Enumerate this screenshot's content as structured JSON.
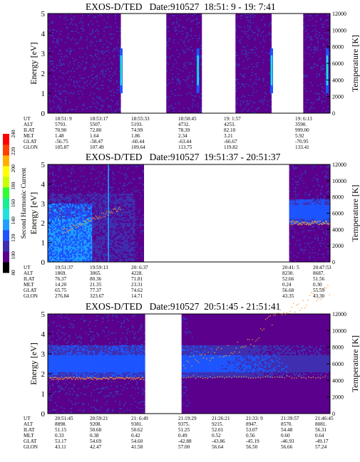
{
  "panels": [
    {
      "title": "EXOS-D/TED   Date:910527  18:51: 9 - 19: 7:41",
      "ephemeris": {
        "UT": [
          "18:51: 9",
          "18:53:17",
          "18:55:33",
          "18:58:45",
          "19: 1:57",
          "19: 6:13"
        ],
        "ALT": [
          "5793.",
          "5507.",
          "5193.",
          "4732.",
          "4253.",
          "3590."
        ],
        "ILAT": [
          "70.90",
          "72.80",
          "74.99",
          "78.39",
          "82.10",
          "999.00"
        ],
        "MLT": [
          "1.48",
          "1.64",
          "1.86",
          "2.34",
          "3.21",
          "5.92"
        ],
        "GLAT": [
          "-56.75",
          "-58.47",
          "-60.44",
          "-63.44",
          "-66.67",
          "-70.95"
        ],
        "GLON": [
          "105.87",
          "107.49",
          "109.64",
          "113.75",
          "119.82",
          "133.41"
        ]
      }
    },
    {
      "title": "EXOS-D/TED   Date:910527  19:51:37 - 20:51:37",
      "ephemeris": {
        "UT": [
          "19:51:37",
          "19:59:13",
          "20: 6:37",
          "20:41: 5",
          "20:47:53"
        ],
        "ALT": [
          "1869.",
          "3065.",
          "4228.",
          "8230.",
          "8687."
        ],
        "ILAT": [
          "76.37",
          "80.36",
          "71.81",
          "52.66",
          "51.56"
        ],
        "MLT": [
          "14.20",
          "21.35",
          "23.31",
          "0.24",
          "0.30"
        ],
        "GLAT": [
          "65.75",
          "77.37",
          "74.62",
          "56.68",
          "55.59"
        ],
        "GLON": [
          "276.84",
          "323.67",
          "14.71",
          "43.35",
          "43.30"
        ]
      }
    },
    {
      "title": "EXOS-D/TED   Date:910527  20:51:45 - 21:51:41",
      "ephemeris": {
        "UT": [
          "20:51:45",
          "20:59:21",
          "21: 6:49",
          "21:19:29",
          "21:26:21",
          "21:33: 9",
          "21:39:57",
          "21:46:45"
        ],
        "ALT": [
          "8898.",
          "9208.",
          "9381.",
          "9375.",
          "9215.",
          "8947.",
          "8570.",
          "8081."
        ],
        "ILAT": [
          "51.15",
          "50.68",
          "50.62",
          "51.25",
          "52.01",
          "53.07",
          "54.48",
          "56.31"
        ],
        "MLT": [
          "0.33",
          "0.38",
          "0.42",
          "0.49",
          "0.52",
          "0.56",
          "0.60",
          "0.64"
        ],
        "GLAT": [
          "53.17",
          "54.69",
          "54.60",
          "-42.88",
          "-43.86",
          "-45.19",
          "-46.93",
          "-49.17"
        ],
        "GLON": [
          "43.11",
          "42.47",
          "41.58",
          "57.00",
          "56.64",
          "56.50",
          "56.66",
          "57.24"
        ]
      }
    }
  ],
  "ephemeris_row_labels": [
    "UT",
    "ALT",
    "ILAT",
    "MLT",
    "GLAT",
    "GLON"
  ],
  "chart_data": [
    {
      "type": "heatmap",
      "title": "EXOS-D/TED   Date:910527  18:51: 9 - 19: 7:41",
      "xlabel": "",
      "ylabel": "Energy [eV]",
      "y2label": "Temperature [K]",
      "ylim": [
        0,
        5
      ],
      "yticks": [
        0,
        1,
        2,
        3,
        4,
        5
      ],
      "y2lim": [
        0,
        12000
      ],
      "y2ticks": [
        0,
        2000,
        4000,
        6000,
        8000,
        10000,
        12000
      ],
      "data_strips": [
        [
          0,
          0.258
        ],
        [
          0.42,
          0.545
        ],
        [
          0.665,
          0.792
        ],
        [
          0.905,
          1.0
        ]
      ],
      "bright_columns": [
        0.26,
        0.532,
        0.793,
        0.99
      ],
      "colormap": [
        "#000000",
        "#5a008c",
        "#3f2fb0",
        "#1d55ff",
        "#1fa0ff",
        "#22e0e0",
        "#18f090",
        "#30ff30",
        "#c8ff00",
        "#ffff00",
        "#ffb000",
        "#ff4000",
        "#ff0000"
      ]
    },
    {
      "type": "heatmap",
      "title": "EXOS-D/TED   Date:910527  19:51:37 - 20:51:37",
      "xlabel": "",
      "ylabel": "Energy [eV]",
      "y2label": "Temperature [K]",
      "ylim": [
        0,
        5
      ],
      "yticks": [
        0,
        1,
        2,
        3,
        4,
        5
      ],
      "y2lim": [
        0,
        12000
      ],
      "y2ticks": [
        0,
        2000,
        4000,
        6000,
        8000,
        10000,
        12000
      ],
      "data_strips": [
        [
          0,
          0.34
        ],
        [
          0.855,
          1.0
        ]
      ],
      "colorbar": {
        "label": "Second Harmonic Current",
        "ticks": [
          80,
          100,
          120,
          140,
          160,
          180,
          200,
          220,
          240
        ]
      },
      "colormap": [
        "#000000",
        "#5a008c",
        "#3f2fb0",
        "#1d55ff",
        "#1fa0ff",
        "#22e0e0",
        "#18f090",
        "#30ff30",
        "#c8ff00",
        "#ffff00",
        "#ffb000",
        "#ff4000",
        "#ff0000"
      ]
    },
    {
      "type": "heatmap",
      "title": "EXOS-D/TED   Date:910527  20:51:45 - 21:51:41",
      "xlabel": "",
      "ylabel": "Energy [eV]",
      "y2label": "Temperature [K]",
      "ylim": [
        0,
        5
      ],
      "yticks": [
        0,
        1,
        2,
        3,
        4,
        5
      ],
      "y2lim": [
        0,
        12000
      ],
      "y2ticks": [
        0,
        2000,
        4000,
        6000,
        8000,
        10000,
        12000
      ],
      "data_strips": [
        [
          0,
          0.344
        ],
        [
          0.474,
          1.0
        ]
      ],
      "colormap": [
        "#000000",
        "#5a008c",
        "#3f2fb0",
        "#1d55ff",
        "#1fa0ff",
        "#22e0e0",
        "#18f090",
        "#30ff30",
        "#c8ff00",
        "#ffff00",
        "#ffb000",
        "#ff4000",
        "#ff0000"
      ]
    }
  ]
}
